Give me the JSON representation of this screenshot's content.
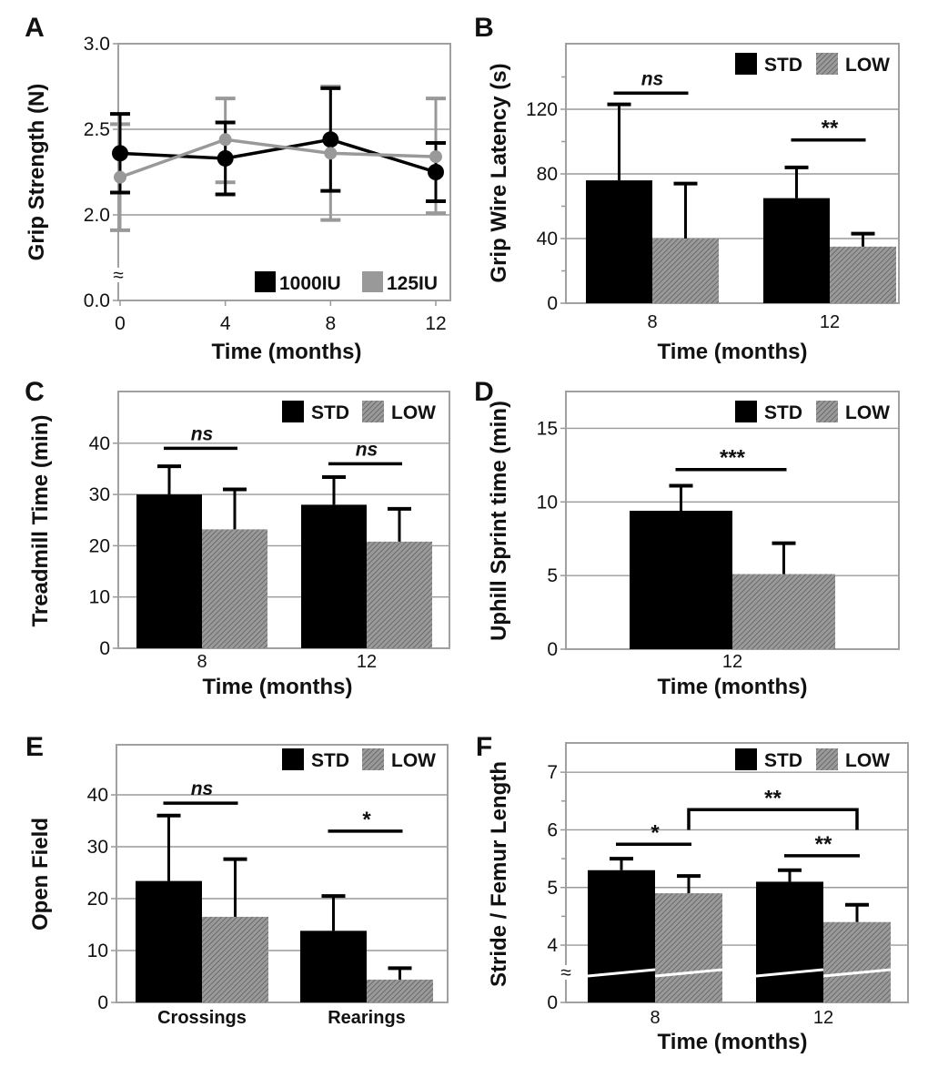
{
  "colors": {
    "std": "#000000",
    "low_hatch_base": "#9a9a9a",
    "low_hatch_line": "#5e5e5e",
    "line_125IU": "#999999",
    "grid": "#9a9a9a"
  },
  "chart_data": [
    {
      "panel": "A",
      "type": "line",
      "xlabel": "Time (months)",
      "ylabel": "Grip Strength (N)",
      "x": [
        0,
        4,
        8,
        12
      ],
      "x_tick_labels": [
        "0",
        "4",
        "8",
        "12"
      ],
      "y_tick_labels": [
        "0.0",
        "2.0",
        "2.5",
        "3.0"
      ],
      "y_ticks": [
        0,
        2.0,
        2.5,
        3.0
      ],
      "gridlines": [
        2.0,
        2.5
      ],
      "ylim": [
        0,
        3.0
      ],
      "axis_break": true,
      "axis_break_symbol": "≈",
      "legend_position": "bottom-right",
      "series": [
        {
          "name": "1000IU",
          "color": "#000000",
          "values": [
            2.36,
            2.33,
            2.44,
            2.25
          ],
          "error_low": [
            2.13,
            2.12,
            2.14,
            2.08
          ],
          "error_high": [
            2.59,
            2.54,
            2.74,
            2.42
          ]
        },
        {
          "name": "125IU",
          "color": "#999999",
          "values": [
            2.22,
            2.44,
            2.36,
            2.34
          ],
          "error_low": [
            1.91,
            2.19,
            1.97,
            2.01
          ],
          "error_high": [
            2.53,
            2.68,
            2.75,
            2.68
          ]
        }
      ]
    },
    {
      "panel": "B",
      "type": "bar",
      "xlabel": "Time (months)",
      "ylabel": "Grip Wire Latency (s)",
      "categories": [
        "8",
        "12"
      ],
      "y_tick_labels": [
        "0",
        "40",
        "80",
        "120"
      ],
      "y_ticks": [
        0,
        40,
        80,
        120
      ],
      "minor_ticks": [
        20,
        60,
        100,
        140
      ],
      "gridlines": [
        40,
        80,
        120
      ],
      "ylim": [
        0,
        160
      ],
      "legend_position": "top-right",
      "series": [
        {
          "name": "STD",
          "values": [
            76,
            65
          ],
          "error_high": [
            123,
            84
          ]
        },
        {
          "name": "LOW",
          "values": [
            40,
            35
          ],
          "error_high": [
            74,
            43
          ]
        }
      ],
      "significance": [
        {
          "label": "ns",
          "italic": true,
          "from": [
            0,
            0
          ],
          "to": [
            0,
            1
          ],
          "level": 130
        },
        {
          "label": "**",
          "from": [
            1,
            0
          ],
          "to": [
            1,
            1
          ],
          "level": 101
        }
      ]
    },
    {
      "panel": "C",
      "type": "bar",
      "xlabel": "Time (months)",
      "ylabel": "Treadmill Time (min)",
      "categories": [
        "8",
        "12"
      ],
      "y_tick_labels": [
        "0",
        "10",
        "20",
        "30",
        "40"
      ],
      "y_ticks": [
        0,
        10,
        20,
        30,
        40
      ],
      "gridlines": [
        10,
        20,
        30,
        40
      ],
      "ylim": [
        0,
        50
      ],
      "legend_position": "top-right",
      "series": [
        {
          "name": "STD",
          "values": [
            30.0,
            28.0
          ],
          "error_high": [
            35.5,
            33.4
          ]
        },
        {
          "name": "LOW",
          "values": [
            23.2,
            20.8
          ],
          "error_high": [
            31.0,
            27.2
          ]
        }
      ],
      "significance": [
        {
          "label": "ns",
          "italic": true,
          "from": [
            0,
            0
          ],
          "to": [
            0,
            1
          ],
          "level": 39
        },
        {
          "label": "ns",
          "italic": true,
          "from": [
            1,
            0
          ],
          "to": [
            1,
            1
          ],
          "level": 36
        }
      ]
    },
    {
      "panel": "D",
      "type": "bar",
      "xlabel": "Time (months)",
      "ylabel": "Uphill Sprint time (min)",
      "categories": [
        "12"
      ],
      "y_tick_labels": [
        "0",
        "5",
        "10",
        "15"
      ],
      "y_ticks": [
        0,
        5,
        10,
        15
      ],
      "gridlines": [
        5,
        10,
        15
      ],
      "ylim": [
        0,
        17.5
      ],
      "legend_position": "top-right",
      "series": [
        {
          "name": "STD",
          "values": [
            9.4
          ],
          "error_high": [
            11.1
          ]
        },
        {
          "name": "LOW",
          "values": [
            5.1
          ],
          "error_high": [
            7.2
          ]
        }
      ],
      "significance": [
        {
          "label": "***",
          "from": [
            0,
            0
          ],
          "to": [
            0,
            1
          ],
          "level": 12.2
        }
      ]
    },
    {
      "panel": "E",
      "type": "bar",
      "xlabel": "",
      "ylabel": "Open Field",
      "categories": [
        "Crossings",
        "Rearings"
      ],
      "y_tick_labels": [
        "0",
        "10",
        "20",
        "30",
        "40"
      ],
      "y_ticks": [
        0,
        10,
        20,
        30,
        40
      ],
      "gridlines": [
        10,
        20,
        30,
        40
      ],
      "ylim": [
        0,
        50
      ],
      "legend_position": "top-right",
      "series": [
        {
          "name": "STD",
          "values": [
            23.4,
            13.8
          ],
          "error_high": [
            36.0,
            20.5
          ]
        },
        {
          "name": "LOW",
          "values": [
            16.5,
            4.4
          ],
          "error_high": [
            27.6,
            6.6
          ]
        }
      ],
      "significance": [
        {
          "label": "ns",
          "italic": true,
          "from": [
            0,
            0
          ],
          "to": [
            0,
            1
          ],
          "level": 38.4
        },
        {
          "label": "*",
          "from": [
            1,
            0
          ],
          "to": [
            1,
            1
          ],
          "level": 33
        }
      ]
    },
    {
      "panel": "F",
      "type": "bar",
      "xlabel": "Time (months)",
      "ylabel": "Stride / Femur Length",
      "categories": [
        "8",
        "12"
      ],
      "y_tick_labels": [
        "0",
        "4",
        "5",
        "6",
        "7"
      ],
      "y_ticks": [
        0,
        4,
        5,
        6,
        7
      ],
      "minor_ticks": [
        4.5,
        5.5,
        6.5
      ],
      "gridlines": [
        4,
        5,
        6,
        7
      ],
      "ylim": [
        0,
        7.5
      ],
      "axis_break": true,
      "axis_break_symbol": "≈",
      "legend_position": "top-right",
      "series": [
        {
          "name": "STD",
          "values": [
            5.3,
            5.1
          ],
          "error_high": [
            5.5,
            5.3
          ]
        },
        {
          "name": "LOW",
          "values": [
            4.9,
            4.4
          ],
          "error_high": [
            5.2,
            4.7
          ]
        }
      ],
      "significance": [
        {
          "label": "*",
          "from": [
            0,
            0
          ],
          "to": [
            0,
            1
          ],
          "level": 5.75
        },
        {
          "label": "**",
          "from": [
            0,
            1
          ],
          "to": [
            1,
            1
          ],
          "level": 6.35,
          "bracket": true,
          "bracket_base": 6.0
        },
        {
          "label": "**",
          "from": [
            1,
            0
          ],
          "to": [
            1,
            1
          ],
          "level": 5.55
        }
      ]
    }
  ]
}
